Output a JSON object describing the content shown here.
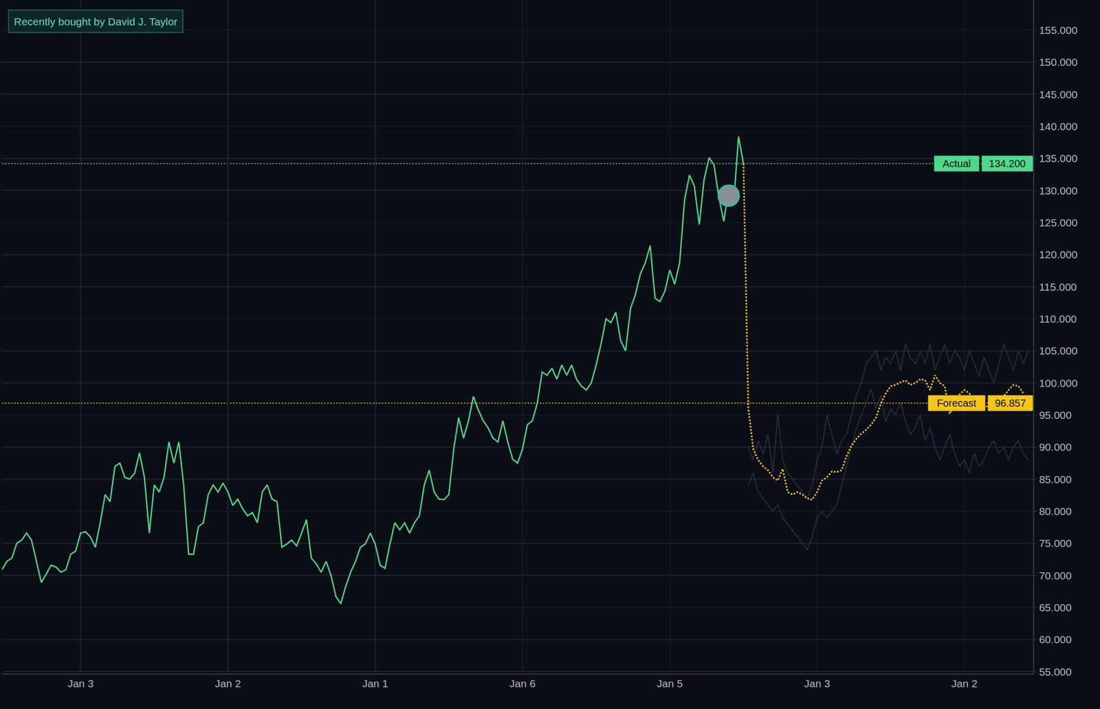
{
  "chart_data": {
    "type": "line",
    "categories": [
      null,
      null,
      null,
      null,
      null,
      null,
      null,
      null,
      null,
      null,
      null,
      null,
      null,
      null,
      null,
      null,
      "Jan 3",
      null,
      null,
      null,
      null,
      null,
      null,
      null,
      null,
      null,
      null,
      null,
      null,
      null,
      null,
      null,
      null,
      null,
      null,
      null,
      null,
      null,
      null,
      null,
      null,
      null,
      null,
      null,
      null,
      null,
      "Jan 2",
      null,
      null,
      null,
      null,
      null,
      null,
      null,
      null,
      null,
      null,
      null,
      null,
      null,
      null,
      null,
      null,
      null,
      null,
      null,
      null,
      null,
      null,
      null,
      null,
      null,
      null,
      null,
      null,
      null,
      "Jan 1",
      null,
      null,
      null,
      null,
      null,
      null,
      null,
      null,
      null,
      null,
      null,
      null,
      null,
      null,
      null,
      null,
      null,
      null,
      null,
      null,
      null,
      null,
      null,
      null,
      null,
      null,
      null,
      null,
      null,
      "Jan 6",
      null,
      null,
      null,
      null,
      null,
      null,
      null,
      null,
      null,
      null,
      null,
      null,
      null,
      null,
      null,
      null,
      null,
      null,
      null,
      null,
      null,
      null,
      null,
      null,
      null,
      null,
      null,
      null,
      null,
      "Jan 5",
      null,
      null,
      null,
      null,
      null,
      null,
      null,
      null,
      null,
      null,
      null,
      null,
      null,
      null,
      null,
      null,
      null,
      null,
      null,
      null,
      null,
      null,
      null,
      null,
      null,
      null,
      null,
      null,
      null,
      "Jan 3",
      null,
      null,
      null,
      null,
      null,
      null,
      null,
      null,
      null,
      null,
      null,
      null,
      null,
      null,
      null,
      null,
      null,
      null,
      null,
      null,
      null,
      null,
      null,
      null,
      null,
      null,
      null,
      null,
      null,
      "Jan 2",
      null,
      null,
      null,
      null,
      null,
      null,
      null,
      null,
      null,
      null,
      null,
      null,
      null,
      null
    ],
    "series": [
      {
        "color": "#3a3f4b",
        "line_style": "thin",
        "values": [
          null,
          null,
          null,
          null,
          null,
          null,
          null,
          null,
          null,
          null,
          null,
          null,
          null,
          null,
          null,
          null,
          null,
          null,
          null,
          null,
          null,
          null,
          null,
          null,
          null,
          null,
          null,
          null,
          null,
          null,
          null,
          null,
          null,
          null,
          null,
          null,
          null,
          null,
          null,
          null,
          null,
          null,
          null,
          null,
          null,
          null,
          null,
          null,
          null,
          null,
          null,
          null,
          null,
          null,
          null,
          null,
          null,
          null,
          null,
          null,
          null,
          null,
          null,
          null,
          null,
          null,
          null,
          null,
          null,
          null,
          null,
          null,
          null,
          null,
          null,
          null,
          null,
          null,
          null,
          null,
          null,
          null,
          null,
          null,
          null,
          null,
          null,
          null,
          null,
          null,
          null,
          null,
          null,
          null,
          null,
          null,
          null,
          null,
          null,
          null,
          null,
          null,
          null,
          null,
          null,
          null,
          null,
          null,
          null,
          null,
          null,
          null,
          null,
          null,
          null,
          null,
          null,
          null,
          null,
          null,
          null,
          null,
          null,
          null,
          null,
          null,
          null,
          null,
          null,
          null,
          null,
          null,
          null,
          null,
          null,
          null,
          null,
          null,
          null,
          null,
          null,
          null,
          null,
          null,
          null,
          null,
          null,
          null,
          null,
          null,
          null,
          null,
          90,
          88,
          91,
          89,
          92,
          86,
          95,
          88,
          86,
          85,
          84,
          83,
          82,
          84,
          88,
          90,
          95,
          92,
          89,
          91,
          92,
          95,
          98,
          100,
          103,
          104,
          105,
          102,
          104,
          103,
          105,
          102,
          106,
          104,
          103,
          105,
          103,
          106,
          102,
          104,
          106,
          103,
          105,
          104,
          102,
          105,
          103,
          101,
          104,
          102,
          100,
          103,
          106,
          104,
          102,
          105,
          103,
          105,
          null
        ]
      },
      {
        "color": "#3a3f4b",
        "line_style": "thin",
        "values": [
          null,
          null,
          null,
          null,
          null,
          null,
          null,
          null,
          null,
          null,
          null,
          null,
          null,
          null,
          null,
          null,
          null,
          null,
          null,
          null,
          null,
          null,
          null,
          null,
          null,
          null,
          null,
          null,
          null,
          null,
          null,
          null,
          null,
          null,
          null,
          null,
          null,
          null,
          null,
          null,
          null,
          null,
          null,
          null,
          null,
          null,
          null,
          null,
          null,
          null,
          null,
          null,
          null,
          null,
          null,
          null,
          null,
          null,
          null,
          null,
          null,
          null,
          null,
          null,
          null,
          null,
          null,
          null,
          null,
          null,
          null,
          null,
          null,
          null,
          null,
          null,
          null,
          null,
          null,
          null,
          null,
          null,
          null,
          null,
          null,
          null,
          null,
          null,
          null,
          null,
          null,
          null,
          null,
          null,
          null,
          null,
          null,
          null,
          null,
          null,
          null,
          null,
          null,
          null,
          null,
          null,
          null,
          null,
          null,
          null,
          null,
          null,
          null,
          null,
          null,
          null,
          null,
          null,
          null,
          null,
          null,
          null,
          null,
          null,
          null,
          null,
          null,
          null,
          null,
          null,
          null,
          null,
          null,
          null,
          null,
          null,
          null,
          null,
          null,
          null,
          null,
          null,
          null,
          null,
          null,
          null,
          null,
          null,
          null,
          null,
          null,
          null,
          84,
          86,
          83,
          82,
          81,
          80,
          81,
          79,
          78,
          77,
          76,
          75,
          74,
          76,
          79,
          80,
          79,
          80,
          81,
          84,
          87,
          90,
          93,
          95,
          97,
          99,
          96,
          98,
          94,
          96,
          95,
          97,
          94,
          92,
          93,
          95,
          91,
          93,
          90,
          88,
          90,
          92,
          89,
          87,
          88,
          86,
          89,
          87,
          88,
          90,
          91,
          89,
          90,
          88,
          90,
          91,
          89,
          88,
          null
        ]
      },
      {
        "color": "#4fd98a",
        "line_style": "solid",
        "values": [
          70.9,
          72.2,
          72.7,
          75.0,
          75.5,
          76.6,
          75.5,
          72.2,
          68.9,
          70.2,
          71.6,
          71.3,
          70.5,
          70.9,
          73.3,
          73.8,
          76.6,
          76.8,
          76.0,
          74.4,
          78.2,
          82.6,
          81.5,
          87.0,
          87.5,
          85.3,
          85.0,
          85.9,
          89.1,
          85.3,
          76.6,
          84.1,
          83.0,
          85.3,
          90.8,
          87.5,
          90.8,
          84.1,
          73.3,
          73.3,
          77.6,
          78.2,
          82.6,
          84.1,
          83.0,
          84.4,
          83.0,
          80.9,
          81.9,
          80.4,
          79.3,
          79.8,
          78.2,
          83.0,
          84.1,
          81.9,
          81.5,
          74.4,
          74.9,
          75.5,
          74.6,
          76.6,
          78.7,
          72.7,
          71.8,
          70.5,
          72.2,
          70.0,
          66.7,
          65.6,
          68.3,
          70.5,
          72.2,
          74.4,
          74.9,
          76.6,
          74.9,
          71.6,
          71.1,
          74.9,
          78.2,
          77.1,
          78.2,
          76.6,
          78.2,
          79.3,
          84.1,
          86.4,
          83.0,
          81.9,
          81.8,
          82.6,
          89.7,
          94.6,
          91.4,
          94.1,
          97.9,
          95.8,
          94.1,
          93.0,
          91.4,
          90.8,
          94.1,
          90.8,
          88.1,
          87.5,
          89.7,
          93.5,
          94.1,
          96.8,
          101.7,
          101.2,
          102.3,
          100.6,
          102.8,
          101.2,
          102.8,
          100.6,
          99.5,
          98.9,
          100.0,
          102.8,
          106.1,
          110.0,
          109.4,
          111.0,
          106.6,
          105.0,
          111.6,
          113.8,
          117.0,
          118.7,
          121.4,
          113.2,
          112.7,
          114.3,
          117.6,
          115.4,
          118.7,
          128.5,
          132.4,
          130.7,
          124.7,
          131.8,
          135.1,
          134.0,
          128.9,
          125.2,
          130.2,
          128.0,
          138.4,
          134.2,
          null,
          null,
          null,
          null,
          null,
          null,
          null,
          null,
          null,
          null,
          null,
          null,
          null,
          null,
          null,
          null,
          null,
          null,
          null,
          null,
          null,
          null,
          null,
          null,
          null,
          null,
          null,
          null,
          null,
          null,
          null,
          null,
          null,
          null,
          null,
          null,
          null,
          null,
          null,
          null,
          null,
          null,
          null,
          null,
          null,
          null,
          null,
          null,
          null,
          null,
          null,
          null,
          null,
          null,
          null,
          null,
          null,
          null,
          null
        ]
      },
      {
        "color": "#f5c518",
        "line_style": "dotted",
        "values": [
          null,
          null,
          null,
          null,
          null,
          null,
          null,
          null,
          null,
          null,
          null,
          null,
          null,
          null,
          null,
          null,
          null,
          null,
          null,
          null,
          null,
          null,
          null,
          null,
          null,
          null,
          null,
          null,
          null,
          null,
          null,
          null,
          null,
          null,
          null,
          null,
          null,
          null,
          null,
          null,
          null,
          null,
          null,
          null,
          null,
          null,
          null,
          null,
          null,
          null,
          null,
          null,
          null,
          null,
          null,
          null,
          null,
          null,
          null,
          null,
          null,
          null,
          null,
          null,
          null,
          null,
          null,
          null,
          null,
          null,
          null,
          null,
          null,
          null,
          null,
          null,
          null,
          null,
          null,
          null,
          null,
          null,
          null,
          null,
          null,
          null,
          null,
          null,
          null,
          null,
          null,
          null,
          null,
          null,
          null,
          null,
          null,
          null,
          null,
          null,
          null,
          null,
          null,
          null,
          null,
          null,
          null,
          null,
          null,
          null,
          null,
          null,
          null,
          null,
          null,
          null,
          null,
          null,
          null,
          null,
          null,
          null,
          null,
          null,
          null,
          null,
          null,
          null,
          null,
          null,
          null,
          null,
          null,
          null,
          null,
          null,
          null,
          null,
          null,
          null,
          null,
          null,
          null,
          null,
          null,
          null,
          null,
          null,
          null,
          null,
          null,
          134.2,
          96.0,
          89.7,
          88.0,
          87.0,
          86.4,
          85.3,
          84.8,
          86.6,
          83.0,
          82.6,
          83.0,
          82.6,
          82.0,
          81.8,
          83.0,
          84.8,
          85.3,
          86.2,
          86.1,
          86.4,
          88.6,
          90.2,
          91.3,
          92.1,
          92.7,
          93.5,
          94.6,
          96.8,
          98.4,
          99.5,
          99.7,
          100.1,
          100.4,
          99.7,
          100.0,
          100.6,
          100.4,
          98.9,
          101.2,
          100.0,
          99.5,
          95.2,
          96.8,
          98.2,
          98.9,
          98.4,
          97.3,
          96.5,
          96.5,
          96.2,
          96.8,
          97.3,
          97.9,
          98.9,
          99.7,
          99.5,
          98.4,
          null,
          null
        ]
      }
    ],
    "ylim": [
      54.7,
      159.7
    ],
    "yticks": [
      {
        "value": 55,
        "label": "55.000"
      },
      {
        "value": 60,
        "label": "60.000"
      },
      {
        "value": 65,
        "label": "65.000"
      },
      {
        "value": 70,
        "label": "70.000"
      },
      {
        "value": 75,
        "label": "75.000"
      },
      {
        "value": 80,
        "label": "80.000"
      },
      {
        "value": 85,
        "label": "85.000"
      },
      {
        "value": 90,
        "label": "90.000"
      },
      {
        "value": 95,
        "label": "95.000"
      },
      {
        "value": 100,
        "label": "100.000"
      },
      {
        "value": 105,
        "label": "105.000"
      },
      {
        "value": 110,
        "label": "110.000"
      },
      {
        "value": 115,
        "label": "115.000"
      },
      {
        "value": 120,
        "label": "120.000"
      },
      {
        "value": 125,
        "label": "125.000"
      },
      {
        "value": 130,
        "label": "130.000"
      },
      {
        "value": 135,
        "label": "135.000"
      },
      {
        "value": 140,
        "label": "140.000"
      },
      {
        "value": 145,
        "label": "145.000"
      },
      {
        "value": 150,
        "label": "150.000"
      },
      {
        "value": 155,
        "label": "155.000"
      }
    ],
    "grid": true,
    "reference_lines": [
      {
        "name": "Actual",
        "value": 134.2,
        "label": "134.200",
        "color": "#4fd98a",
        "line_style": "dotted"
      },
      {
        "name": "Forecast",
        "value": 96.857,
        "label": "96.857",
        "color": "#f5c518",
        "line_style": "dotted"
      }
    ],
    "annotations": [
      {
        "text": "Recently bought by David J. Taylor",
        "x": 148,
        "y": 129.2
      }
    ]
  }
}
